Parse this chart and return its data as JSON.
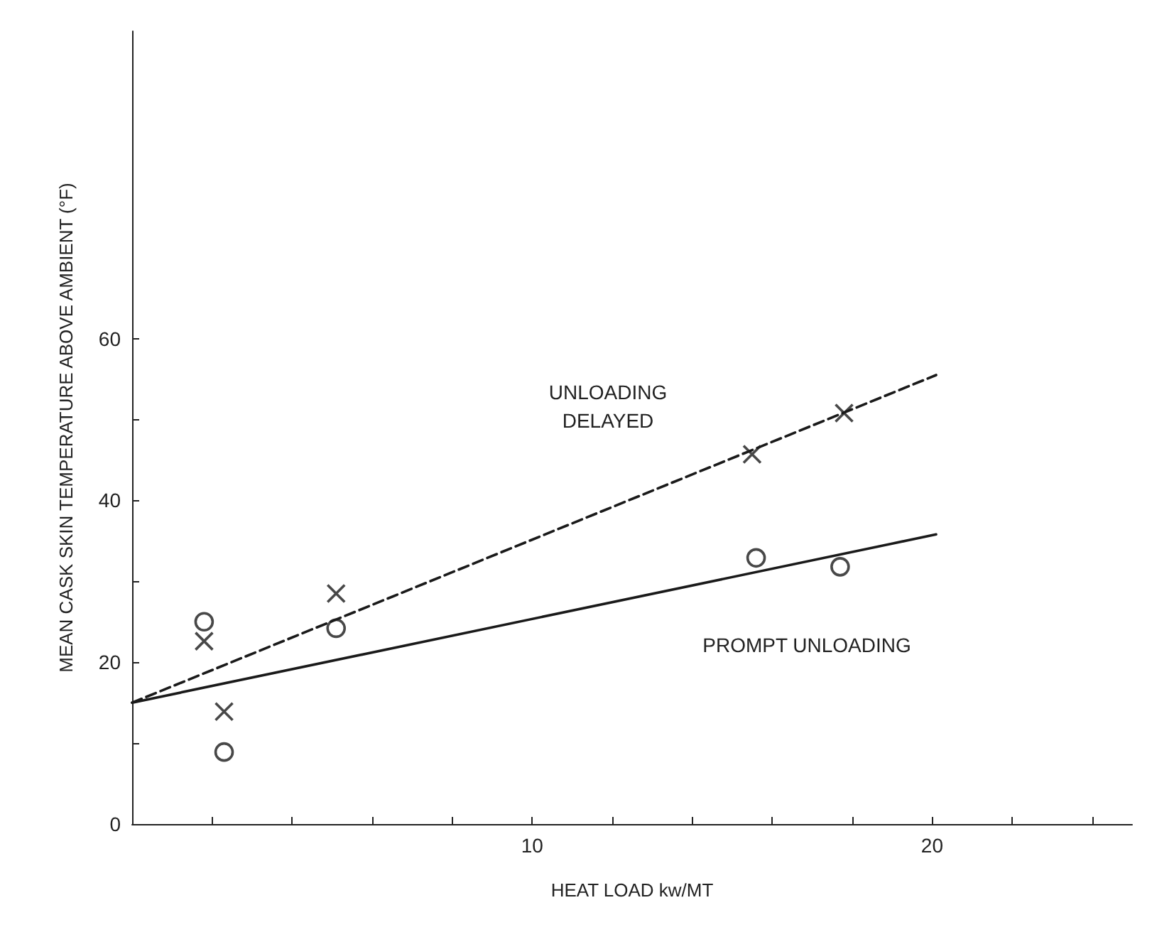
{
  "chart_data": {
    "type": "scatter",
    "xlabel": "HEAT LOAD kw/MT",
    "ylabel": "MEAN CASK SKIN TEMPERATURE ABOVE AMBIENT (°F)",
    "xlim": [
      0,
      25
    ],
    "ylim": [
      0,
      98
    ],
    "xticks": [
      {
        "value": 2,
        "label": null
      },
      {
        "value": 4,
        "label": null
      },
      {
        "value": 6,
        "label": null
      },
      {
        "value": 8,
        "label": null
      },
      10,
      {
        "value": 12,
        "label": null
      },
      {
        "value": 14,
        "label": null
      },
      {
        "value": 16,
        "label": null
      },
      {
        "value": 18,
        "label": null
      },
      20,
      {
        "value": 22,
        "label": null
      },
      {
        "value": 24,
        "label": null
      }
    ],
    "yticks": [
      0,
      {
        "value": 10,
        "label": null
      },
      20,
      {
        "value": 30,
        "label": null
      },
      40,
      {
        "value": 50,
        "label": null
      },
      60
    ],
    "grid": false,
    "series": [
      {
        "marker": "cross",
        "color": "#1a1a1a",
        "x": [
          1.8,
          2.3,
          5.1,
          15.5,
          17.8
        ],
        "values": [
          22.6,
          13.9,
          28.5,
          45.7,
          50.8
        ]
      },
      {
        "marker": "circle",
        "color": "#1a1a1a",
        "x": [
          1.8,
          2.3,
          5.1,
          15.6,
          17.7
        ],
        "values": [
          25.0,
          8.9,
          24.2,
          32.9,
          31.8
        ]
      },
      {
        "type": "line",
        "marker": "none",
        "line_style": "dashed",
        "color": "#1a1a1a",
        "x": [
          0,
          20.1
        ],
        "values": [
          15,
          55.5
        ]
      },
      {
        "type": "line",
        "marker": "none",
        "line_style": "solid",
        "color": "#1a1a1a",
        "x": [
          0,
          20.1
        ],
        "values": [
          15,
          35.8
        ]
      }
    ],
    "annotations": [
      "UNLOADING\nDELAYED",
      "PROMPT UNLOADING"
    ]
  }
}
